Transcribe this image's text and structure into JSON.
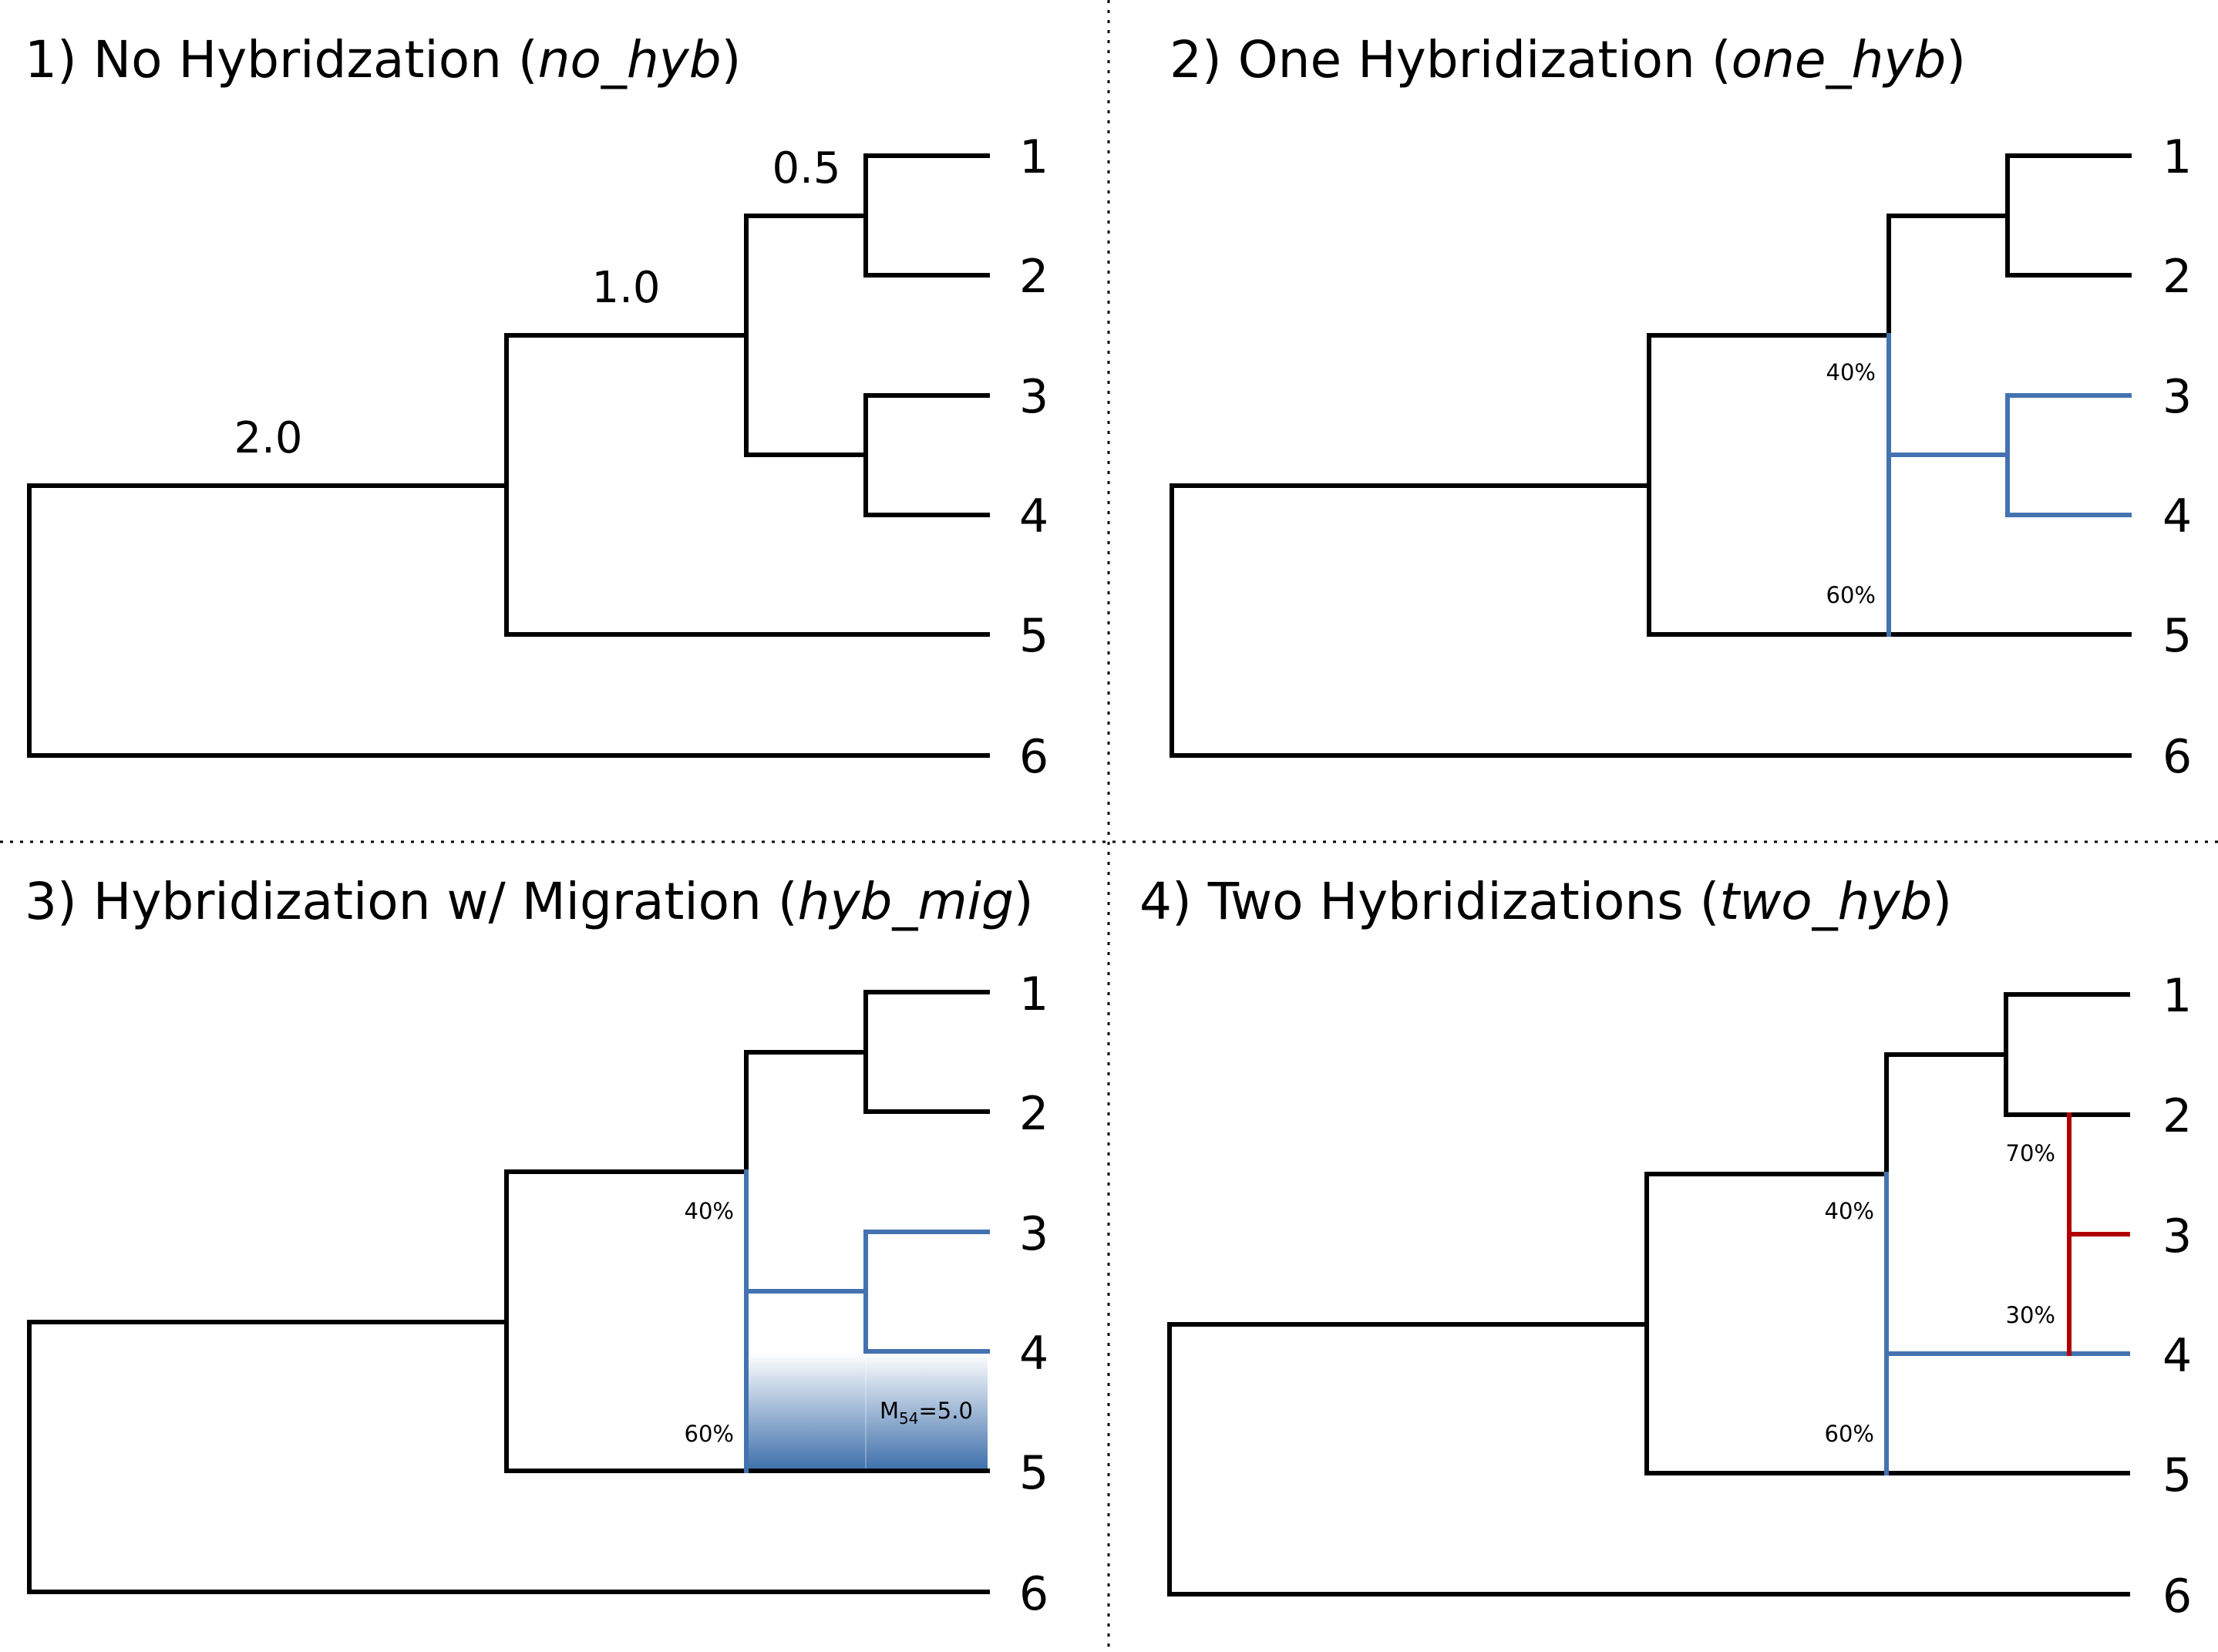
{
  "colors": {
    "tree": "#000000",
    "hybrid_a": "#4472b0",
    "hybrid_b": "#b00000",
    "migration": "#3d6fab"
  },
  "panels": [
    {
      "title_prefix": "1) No Hybridzation (",
      "title_code": "no_hyb",
      "title_suffix": ")",
      "tips": [
        "1",
        "2",
        "3",
        "4",
        "5",
        "6"
      ],
      "branch_lengths": [
        "2.0",
        "1.0",
        "0.5"
      ]
    },
    {
      "title_prefix": "2) One Hybridization (",
      "title_code": "one_hyb",
      "title_suffix": ")",
      "tips": [
        "1",
        "2",
        "3",
        "4",
        "5",
        "6"
      ],
      "hybrid": {
        "upper_pct": "40%",
        "lower_pct": "60%"
      }
    },
    {
      "title_prefix": "3) Hybridization w/ Migration (",
      "title_code": "hyb_mig",
      "title_suffix": ")",
      "tips": [
        "1",
        "2",
        "3",
        "4",
        "5",
        "6"
      ],
      "hybrid": {
        "upper_pct": "40%",
        "lower_pct": "60%"
      },
      "migration": {
        "label_main": "M",
        "label_sub": "54",
        "label_value": "=5.0"
      }
    },
    {
      "title_prefix": "4) Two Hybridizations (",
      "title_code": "two_hyb",
      "title_suffix": ")",
      "tips": [
        "1",
        "2",
        "3",
        "4",
        "5",
        "6"
      ],
      "hybrid": {
        "upper_pct": "40%",
        "lower_pct": "60%"
      },
      "hybrid2": {
        "upper_pct": "70%",
        "lower_pct": "30%"
      }
    }
  ]
}
